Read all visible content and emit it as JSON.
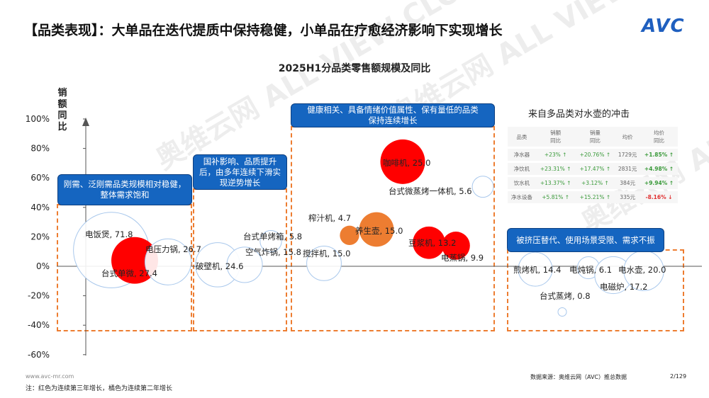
{
  "title": "【品类表现】：大单品在迭代提质中保持稳健，小单品在疗愈经济影响下实现增长",
  "logo": "AVC",
  "watermark": "奥维云网 ALL VIEW CLOUD",
  "callouts": [
    "刚需、泛刚需品类规模相对稳健，整体需求饱和",
    "国补影响、品质提升后，由多年连续下滑实现逆势增长",
    "健康相关、具备情绪价值属性、保有量低的品类保持连续增长",
    "被挤压替代、使用场景受限、需求不振"
  ],
  "impact_title": "来自多品类对水壶的冲击",
  "impact_table": {
    "headers": [
      "品类",
      "销额\n同比",
      "销量\n同比",
      "均价",
      "均价\n同比"
    ],
    "rows": [
      [
        "净水器",
        "+23% ↑",
        "+20.76% ↑",
        "1729元",
        "+1.85% ↑"
      ],
      [
        "净饮机",
        "+23.31% ↑",
        "+17.47% ↑",
        "2831元",
        "+4.98% ↑"
      ],
      [
        "饮水机",
        "+13.37% ↑",
        "+3.12% ↑",
        "384元",
        "+9.94% ↑"
      ],
      [
        "净水设备",
        "+5.81% ↑",
        "+15.21% ↑",
        "335元",
        "-8.16% ↓"
      ]
    ]
  },
  "chart_data": {
    "type": "bubble",
    "title": "2025H1分品类零售额规模及同比",
    "ylabel": "销额同比",
    "ylim": [
      -60,
      100
    ],
    "yticks": [
      "100%",
      "80%",
      "60%",
      "40%",
      "20%",
      "0%",
      "-20%",
      "-40%",
      "-60%"
    ],
    "colors": {
      "third_year_growth": "#ff0000",
      "second_year_growth": "#ed7d31",
      "other": "#ffffff"
    },
    "series": [
      {
        "name": "电饭煲",
        "size": 71.8,
        "y": 11,
        "color": "other"
      },
      {
        "name": "台式单微",
        "size": 27.4,
        "y": 4,
        "color": "third_year_growth"
      },
      {
        "name": "电压力锅",
        "size": 26.7,
        "y": 3,
        "color": "other"
      },
      {
        "name": "破壁机",
        "size": 24.6,
        "y": 1,
        "color": "other"
      },
      {
        "name": "空气炸锅",
        "size": 15.8,
        "y": 1,
        "color": "other"
      },
      {
        "name": "台式单烤箱",
        "size": 5.8,
        "y": 17,
        "color": "other"
      },
      {
        "name": "搅拌机",
        "size": 15.0,
        "y": 2,
        "color": "other"
      },
      {
        "name": "榨汁机",
        "size": 4.7,
        "y": 21,
        "color": "second_year_growth"
      },
      {
        "name": "养生壶",
        "size": 15.0,
        "y": 25,
        "color": "second_year_growth"
      },
      {
        "name": "咖啡机",
        "size": 25.0,
        "y": 71,
        "color": "third_year_growth"
      },
      {
        "name": "台式微蒸烤一体机",
        "size": 5.6,
        "y": 54,
        "color": "other"
      },
      {
        "name": "豆浆机",
        "size": 13.2,
        "y": 16,
        "color": "third_year_growth"
      },
      {
        "name": "电蒸锅",
        "size": 9.9,
        "y": 14,
        "color": "third_year_growth"
      },
      {
        "name": "煎烤机",
        "size": 14.4,
        "y": -2,
        "color": "other"
      },
      {
        "name": "电炖锅",
        "size": 6.1,
        "y": -1,
        "color": "other"
      },
      {
        "name": "电磁炉",
        "size": 17.2,
        "y": -6,
        "color": "other"
      },
      {
        "name": "电水壶",
        "size": 20.0,
        "y": -3,
        "color": "other"
      },
      {
        "name": "台式蒸烤",
        "size": 0.8,
        "y": -31,
        "color": "other"
      }
    ]
  },
  "footer": {
    "url": "www.avc-mr.com",
    "note": "注：红色为连续第三年增长，橘色为连续第二年增长",
    "source": "数据来源：奥维云网（AVC）推总数据",
    "page": "2/129"
  }
}
